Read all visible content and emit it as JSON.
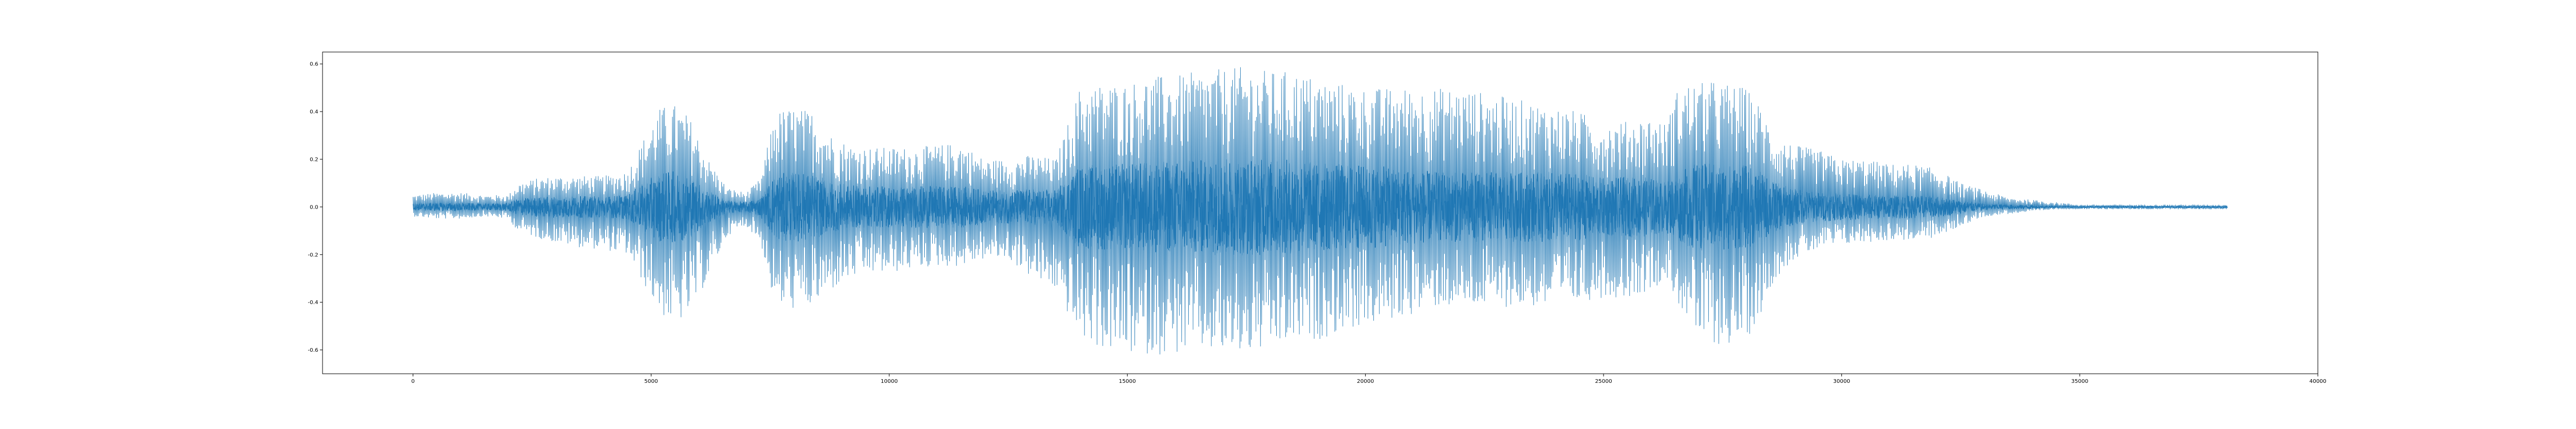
{
  "chart_data": {
    "type": "line",
    "title": "",
    "xlabel": "",
    "ylabel": "",
    "xlim": [
      -1900,
      40000
    ],
    "ylim": [
      -0.7,
      0.65
    ],
    "grid": false,
    "legend": "none",
    "colors": {
      "series": "#1f77b4",
      "axes": "#000000",
      "background": "#ffffff"
    },
    "xticks": [
      {
        "value": 0,
        "label": "0"
      },
      {
        "value": 5000,
        "label": "5000"
      },
      {
        "value": 10000,
        "label": "10000"
      },
      {
        "value": 15000,
        "label": "15000"
      },
      {
        "value": 20000,
        "label": "20000"
      },
      {
        "value": 25000,
        "label": "25000"
      },
      {
        "value": 30000,
        "label": "30000"
      },
      {
        "value": 35000,
        "label": "35000"
      },
      {
        "value": 40000,
        "label": "40000"
      }
    ],
    "yticks": [
      {
        "value": 0.6,
        "label": "0.6"
      },
      {
        "value": 0.4,
        "label": "0.4"
      },
      {
        "value": 0.2,
        "label": "0.2"
      },
      {
        "value": 0.0,
        "label": "0.0"
      },
      {
        "value": -0.2,
        "label": "-0.2"
      },
      {
        "value": -0.4,
        "label": "-0.4"
      },
      {
        "value": -0.6,
        "label": "-0.6"
      }
    ],
    "series": [
      {
        "sample_count": 38100,
        "envelope": {
          "x": [
            0,
            500,
            1000,
            1500,
            2000,
            2200,
            2600,
            3000,
            3500,
            4000,
            4500,
            5000,
            5200,
            5500,
            5800,
            6200,
            6600,
            7000,
            7300,
            7600,
            8000,
            8400,
            8800,
            9200,
            9600,
            10000,
            10500,
            11000,
            11500,
            12000,
            12500,
            13000,
            13500,
            14000,
            14500,
            15000,
            15500,
            16000,
            16500,
            17000,
            17500,
            18000,
            18500,
            19000,
            19500,
            20000,
            20500,
            21000,
            21500,
            22000,
            22500,
            23000,
            23500,
            24000,
            24500,
            25000,
            25500,
            26000,
            26300,
            26600,
            27000,
            27300,
            27600,
            28000,
            28300,
            28600,
            29000,
            29500,
            30000,
            30500,
            31000,
            31500,
            32000,
            32500,
            33000,
            33500,
            34000,
            34500,
            35000,
            35500,
            36000,
            36500,
            37000,
            37500,
            38100
          ],
          "max": [
            0.05,
            0.06,
            0.06,
            0.05,
            0.05,
            0.1,
            0.12,
            0.13,
            0.13,
            0.13,
            0.15,
            0.35,
            0.42,
            0.43,
            0.38,
            0.2,
            0.08,
            0.06,
            0.12,
            0.4,
            0.42,
            0.4,
            0.3,
            0.26,
            0.25,
            0.25,
            0.25,
            0.26,
            0.27,
            0.2,
            0.2,
            0.22,
            0.2,
            0.5,
            0.52,
            0.52,
            0.55,
            0.55,
            0.57,
            0.58,
            0.59,
            0.57,
            0.57,
            0.54,
            0.52,
            0.5,
            0.5,
            0.5,
            0.5,
            0.5,
            0.48,
            0.46,
            0.44,
            0.42,
            0.4,
            0.35,
            0.36,
            0.38,
            0.35,
            0.52,
            0.52,
            0.53,
            0.52,
            0.5,
            0.42,
            0.3,
            0.26,
            0.24,
            0.2,
            0.2,
            0.18,
            0.18,
            0.16,
            0.1,
            0.07,
            0.04,
            0.03,
            0.02,
            0.01,
            0.01,
            0.01,
            0.01,
            0.01,
            0.01,
            0.01
          ],
          "min": [
            -0.04,
            -0.05,
            -0.05,
            -0.04,
            -0.05,
            -0.1,
            -0.13,
            -0.15,
            -0.17,
            -0.18,
            -0.2,
            -0.38,
            -0.45,
            -0.5,
            -0.45,
            -0.3,
            -0.12,
            -0.08,
            -0.15,
            -0.42,
            -0.43,
            -0.42,
            -0.35,
            -0.3,
            -0.28,
            -0.28,
            -0.26,
            -0.25,
            -0.25,
            -0.22,
            -0.22,
            -0.3,
            -0.35,
            -0.55,
            -0.6,
            -0.62,
            -0.62,
            -0.62,
            -0.6,
            -0.62,
            -0.62,
            -0.6,
            -0.57,
            -0.56,
            -0.52,
            -0.5,
            -0.48,
            -0.45,
            -0.42,
            -0.42,
            -0.42,
            -0.42,
            -0.42,
            -0.42,
            -0.4,
            -0.38,
            -0.38,
            -0.35,
            -0.3,
            -0.42,
            -0.56,
            -0.58,
            -0.58,
            -0.56,
            -0.45,
            -0.3,
            -0.22,
            -0.18,
            -0.16,
            -0.15,
            -0.14,
            -0.14,
            -0.13,
            -0.08,
            -0.04,
            -0.03,
            -0.02,
            -0.01,
            -0.01,
            -0.01,
            -0.01,
            -0.01,
            -0.01,
            -0.01,
            -0.01
          ]
        }
      }
    ]
  }
}
